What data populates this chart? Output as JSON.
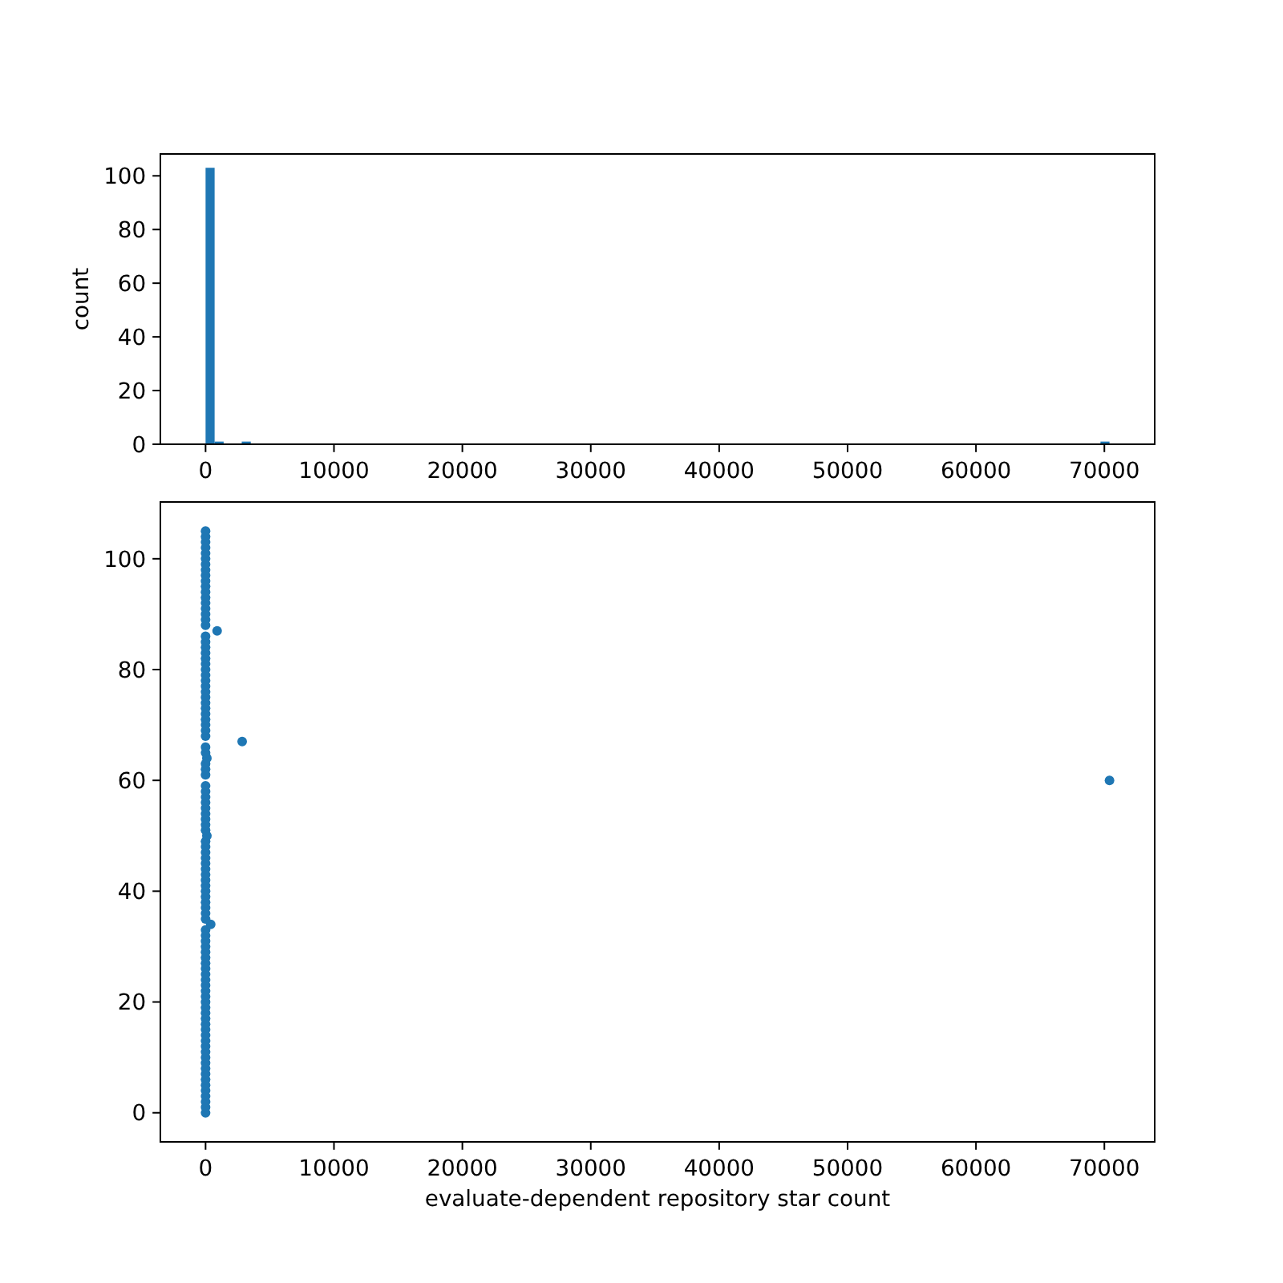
{
  "chart_data": [
    {
      "type": "histogram",
      "color": "#1f77b4",
      "ylabel": "count",
      "bins": [
        0,
        704,
        1408,
        2112,
        2816,
        3520,
        4224,
        4928,
        5632,
        6336,
        7040,
        7744,
        8448,
        9152,
        9856,
        10560,
        11264,
        11968,
        12672,
        13376,
        14080,
        14784,
        15488,
        16192,
        16896,
        17600,
        18304,
        19008,
        19712,
        20416,
        21120,
        21824,
        22528,
        23232,
        23936,
        24640,
        25344,
        26048,
        26752,
        27456,
        28160,
        28864,
        29568,
        30272,
        30976,
        31680,
        32384,
        33088,
        33792,
        34496,
        35200,
        35904,
        36608,
        37312,
        38016,
        38720,
        39424,
        40128,
        40832,
        41536,
        42240,
        42944,
        43648,
        44352,
        45056,
        45760,
        46464,
        47168,
        47872,
        48576,
        49280,
        49984,
        50688,
        51392,
        52096,
        52800,
        53504,
        54208,
        54912,
        55616,
        56320,
        57024,
        57728,
        58432,
        59136,
        59840,
        60544,
        61248,
        61952,
        62656,
        63360,
        64064,
        64768,
        65472,
        66176,
        66880,
        67584,
        68288,
        68992,
        69696,
        70400
      ],
      "values": [
        103,
        1,
        0,
        0,
        1,
        0,
        0,
        0,
        0,
        0,
        0,
        0,
        0,
        0,
        0,
        0,
        0,
        0,
        0,
        0,
        0,
        0,
        0,
        0,
        0,
        0,
        0,
        0,
        0,
        0,
        0,
        0,
        0,
        0,
        0,
        0,
        0,
        0,
        0,
        0,
        0,
        0,
        0,
        0,
        0,
        0,
        0,
        0,
        0,
        0,
        0,
        0,
        0,
        0,
        0,
        0,
        0,
        0,
        0,
        0,
        0,
        0,
        0,
        0,
        0,
        0,
        0,
        0,
        0,
        0,
        0,
        0,
        0,
        0,
        0,
        0,
        0,
        0,
        0,
        0,
        0,
        0,
        0,
        0,
        0,
        0,
        0,
        0,
        0,
        0,
        0,
        0,
        0,
        0,
        0,
        0,
        0,
        0,
        0,
        1
      ],
      "xlim": [
        -3520,
        73920
      ],
      "xticks": [
        0,
        10000,
        20000,
        30000,
        40000,
        50000,
        60000,
        70000
      ],
      "ylim": [
        0,
        108.15
      ],
      "yticks": [
        0,
        20,
        40,
        60,
        80,
        100
      ]
    },
    {
      "type": "scatter",
      "color": "#1f77b4",
      "marker": "circle",
      "xlabel": "evaluate-dependent repository star count",
      "x": [
        0,
        0,
        0,
        0,
        0,
        0,
        0,
        0,
        0,
        0,
        0,
        0,
        0,
        0,
        0,
        0,
        0,
        0,
        0,
        0,
        0,
        0,
        0,
        0,
        0,
        0,
        0,
        0,
        0,
        0,
        0,
        0,
        0,
        0,
        400,
        0,
        0,
        0,
        0,
        0,
        0,
        0,
        0,
        0,
        0,
        0,
        0,
        0,
        0,
        0,
        100,
        0,
        0,
        0,
        0,
        0,
        0,
        0,
        0,
        0,
        70400,
        0,
        0,
        0,
        100,
        0,
        0,
        2850,
        0,
        0,
        0,
        0,
        0,
        0,
        0,
        0,
        0,
        0,
        0,
        0,
        0,
        0,
        0,
        0,
        0,
        0,
        0,
        900,
        0,
        0,
        0,
        0,
        0,
        0,
        0,
        0,
        0,
        0,
        0,
        0,
        0,
        0,
        0,
        0,
        0,
        0
      ],
      "values": [
        0,
        1,
        2,
        3,
        4,
        5,
        6,
        7,
        8,
        9,
        10,
        11,
        12,
        13,
        14,
        15,
        16,
        17,
        18,
        19,
        20,
        21,
        22,
        23,
        24,
        25,
        26,
        27,
        28,
        29,
        30,
        31,
        32,
        33,
        34,
        35,
        36,
        37,
        38,
        39,
        40,
        41,
        42,
        43,
        44,
        45,
        46,
        47,
        48,
        49,
        50,
        51,
        52,
        53,
        54,
        55,
        56,
        57,
        58,
        59,
        60,
        61,
        62,
        63,
        64,
        65,
        66,
        67,
        68,
        69,
        70,
        71,
        72,
        73,
        74,
        75,
        76,
        77,
        78,
        79,
        80,
        81,
        82,
        83,
        84,
        85,
        86,
        87,
        88,
        89,
        90,
        91,
        92,
        93,
        94,
        95,
        96,
        97,
        98,
        99,
        100,
        101,
        102,
        103,
        104,
        105
      ],
      "xlim": [
        -3520,
        73920
      ],
      "xticks": [
        0,
        10000,
        20000,
        30000,
        40000,
        50000,
        60000,
        70000
      ],
      "ylim": [
        -5.25,
        110.25
      ],
      "yticks": [
        0,
        20,
        40,
        60,
        80,
        100
      ]
    }
  ]
}
